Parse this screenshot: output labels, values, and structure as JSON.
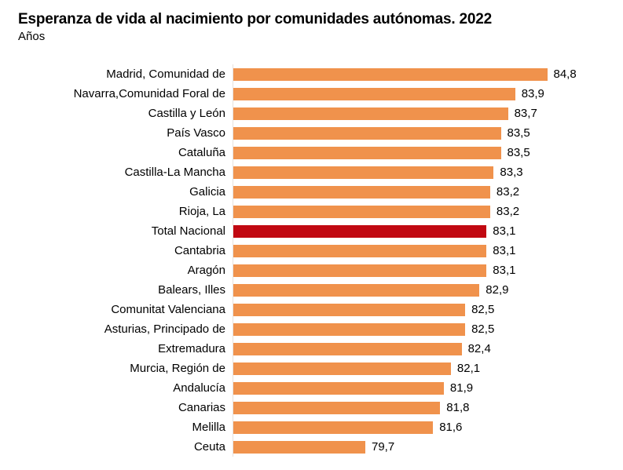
{
  "title": "Esperanza de vida al nacimiento por comunidades autónomas. 2022",
  "subtitle": "Años",
  "colors": {
    "bar": "#f0924c",
    "highlight_bar": "#c10811",
    "axis_line": "#e8e1dd",
    "text": "#000000"
  },
  "chart_data": {
    "type": "bar",
    "orientation": "horizontal",
    "title": "Esperanza de vida al nacimiento por comunidades autónomas. 2022",
    "subtitle": "Años",
    "xlabel": "",
    "ylabel": "",
    "xlim": [
      76,
      85
    ],
    "grid": false,
    "legend": false,
    "highlight_category": "Total Nacional",
    "categories": [
      "Madrid, Comunidad de",
      "Navarra,Comunidad Foral de",
      "Castilla y León",
      "País Vasco",
      "Cataluña",
      "Castilla-La Mancha",
      "Galicia",
      "Rioja, La",
      "Total Nacional",
      "Cantabria",
      "Aragón",
      "Balears, Illes",
      "Comunitat Valenciana",
      "Asturias, Principado de",
      "Extremadura",
      "Murcia, Región de",
      "Andalucía",
      "Canarias",
      "Melilla",
      "Ceuta"
    ],
    "values": [
      84.8,
      83.9,
      83.7,
      83.5,
      83.5,
      83.3,
      83.2,
      83.2,
      83.1,
      83.1,
      83.1,
      82.9,
      82.5,
      82.5,
      82.4,
      82.1,
      81.9,
      81.8,
      81.6,
      79.7
    ],
    "value_labels": [
      "84,8",
      "83,9",
      "83,7",
      "83,5",
      "83,5",
      "83,3",
      "83,2",
      "83,2",
      "83,1",
      "83,1",
      "83,1",
      "82,9",
      "82,5",
      "82,5",
      "82,4",
      "82,1",
      "81,9",
      "81,8",
      "81,6",
      "79,7"
    ]
  }
}
